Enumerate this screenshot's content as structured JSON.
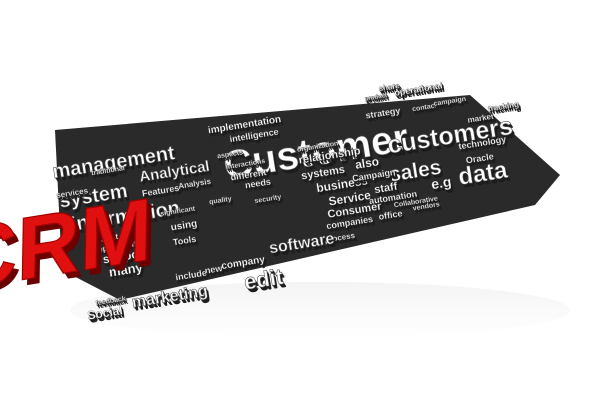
{
  "image": {
    "description_text": "",
    "background_color": "#ffffff",
    "word_color": "#ffffff",
    "word_shadow_color": "#1c1c1c",
    "accent_color": "#e01010",
    "accent_shadow_color": "#6b0000"
  },
  "cloud": {
    "main_word": "CRM",
    "words": [
      "management",
      "implementation",
      "Customer",
      "share",
      "operational",
      "product",
      "intelligence",
      "system",
      "Analytical",
      "strategy",
      "contact",
      "campaign",
      "customers",
      "information",
      "Features",
      "Analysis",
      "relationship",
      "systems",
      "also",
      "sales",
      "technology",
      "Oracle",
      "business",
      "Campaign",
      "Service",
      "staff",
      "automation",
      "e.g",
      "data",
      "Consumer",
      "companies",
      "process",
      "using",
      "project",
      "departments",
      "support",
      "many",
      "Tools",
      "needs",
      "different",
      "software",
      "new",
      "company",
      "edit",
      "Social",
      "marketing",
      "include",
      "feedback",
      "Collaborative",
      "office",
      "vendors",
      "aspects",
      "traditional",
      "services",
      "significant",
      "security",
      "quality",
      "organization",
      "interactions",
      "market",
      "tracking"
    ]
  }
}
